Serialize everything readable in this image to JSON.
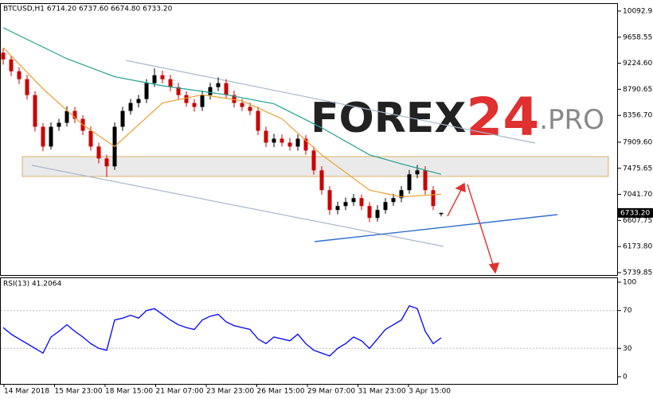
{
  "chart_data": {
    "type": "candlestick",
    "title": "BTCUSD,H1  6714.20 6737.60 6674.80 6733.20",
    "up_color": "#000000",
    "down_color": "#cc0000",
    "open": [
      9400,
      9288,
      9091,
      8959,
      8695,
      8167,
      7838,
      8167,
      8233,
      8431,
      8299,
      8101,
      7838,
      7640,
      7508,
      8167,
      8431,
      8563,
      8629,
      8893,
      9025,
      8959,
      8827,
      8695,
      8563,
      8497,
      8695,
      8827,
      8893,
      8695,
      8563,
      8497,
      8431,
      8101,
      7903,
      7969,
      7903,
      7838,
      7969,
      7772,
      7442,
      7112,
      6782,
      6848,
      6914,
      6980,
      6848,
      6650,
      6782,
      6914,
      6980,
      7112,
      7376,
      7442,
      7112,
      6714.2
    ],
    "high": [
      9470,
      9350,
      9160,
      9030,
      8760,
      8230,
      8240,
      8300,
      8510,
      8500,
      8360,
      8170,
      7900,
      7700,
      8240,
      8500,
      8630,
      8700,
      8960,
      9140,
      9100,
      9030,
      8900,
      8760,
      8630,
      8770,
      8900,
      8990,
      8960,
      8770,
      8630,
      8570,
      8500,
      8170,
      8050,
      8040,
      7980,
      8040,
      8030,
      7840,
      7510,
      7180,
      6920,
      6990,
      7050,
      7040,
      6910,
      6860,
      6980,
      7050,
      7180,
      7450,
      7530,
      7510,
      7180,
      6737.6
    ],
    "low": [
      9200,
      9010,
      8880,
      8620,
      8090,
      7760,
      7790,
      8100,
      8170,
      8230,
      8030,
      7770,
      7560,
      7330,
      7450,
      8100,
      8370,
      8490,
      8560,
      8830,
      8890,
      8760,
      8630,
      8500,
      8420,
      8430,
      8620,
      8760,
      8630,
      8490,
      8430,
      8360,
      8030,
      7830,
      7830,
      7840,
      7770,
      7770,
      7700,
      7370,
      7040,
      6700,
      6710,
      6780,
      6850,
      6780,
      6580,
      6590,
      6720,
      6850,
      6910,
      7050,
      7310,
      7040,
      6780,
      6674.8
    ],
    "close": [
      9288,
      9091,
      8959,
      8695,
      8167,
      7838,
      8167,
      8233,
      8431,
      8299,
      8101,
      7838,
      7640,
      7508,
      8167,
      8431,
      8563,
      8629,
      8893,
      9025,
      8959,
      8827,
      8695,
      8563,
      8497,
      8695,
      8827,
      8893,
      8695,
      8563,
      8497,
      8431,
      8101,
      7903,
      7969,
      7903,
      7838,
      7969,
      7772,
      7442,
      7112,
      6782,
      6848,
      6914,
      6980,
      6848,
      6650,
      6782,
      6914,
      6980,
      7112,
      7376,
      7442,
      7112,
      6848,
      6733.2
    ],
    "close_label": "6733.20",
    "indicators": [
      {
        "color": "#e8a030",
        "x": [
          0,
          5,
          10,
          14,
          20,
          25,
          30,
          35,
          40,
          46,
          50,
          55
        ],
        "values": [
          9486,
          8800,
          8200,
          7838,
          8563,
          8700,
          8600,
          8300,
          7700,
          7112,
          7000,
          7046
        ]
      },
      {
        "color": "#20a090",
        "x": [
          0,
          8,
          14,
          20,
          28,
          34,
          40,
          46,
          50,
          55
        ],
        "values": [
          9816,
          9300,
          9000,
          8850,
          8700,
          8550,
          8150,
          7700,
          7550,
          7376
        ]
      }
    ],
    "ylim": [
      5713,
      10211
    ],
    "yticks": [
      10092.95,
      9658.55,
      {
        "value": 9224.6,
        "label": "9224.60"
      },
      8790.65,
      {
        "value": 8356.7,
        "label": "8356.70"
      },
      {
        "value": 7909.6,
        "label": "7909.60"
      },
      7475.65,
      {
        "value": 7041.7,
        "label": "7041.70"
      },
      6607.75,
      {
        "value": 6173.8,
        "label": "6173.80"
      },
      5739.85
    ],
    "time_labels": [
      "14 Mar 2018",
      "15 Mar 23:00",
      "18 Mar 15:00",
      "21 Mar 07:00",
      "23 Mar 23:00",
      "26 Mar 15:00",
      "29 Mar 07:00",
      "31 Mar 23:00",
      "3 Apr 15:00"
    ],
    "watermark": [
      "FOREX",
      "24",
      ".PRO"
    ],
    "rsi": {
      "title": "RSI(13) 41.2064",
      "color": "#0000ff",
      "values": [
        52,
        45,
        40,
        35,
        30,
        25,
        42,
        48,
        55,
        48,
        42,
        35,
        30,
        28,
        60,
        62,
        65,
        62,
        70,
        72,
        66,
        60,
        55,
        52,
        50,
        60,
        64,
        66,
        58,
        54,
        52,
        50,
        40,
        35,
        42,
        40,
        38,
        45,
        35,
        28,
        25,
        22,
        30,
        35,
        42,
        38,
        30,
        40,
        50,
        55,
        60,
        75,
        72,
        48,
        35,
        41.2064
      ],
      "ylim": [
        0,
        100
      ],
      "yticks": [
        100,
        70,
        30,
        0
      ]
    }
  }
}
